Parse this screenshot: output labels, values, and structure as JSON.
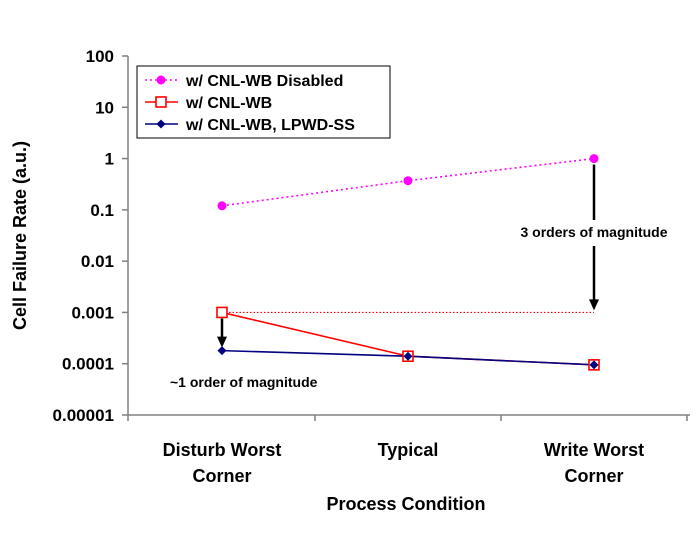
{
  "chart_data": {
    "type": "line",
    "x_scale": "category",
    "y_scale": "log",
    "ylim": [
      1e-05,
      100
    ],
    "xlabel": "Process Condition",
    "ylabel": "Cell Failure Rate (a.u.)",
    "y_ticks": [
      "0.00001",
      "0.0001",
      "0.001",
      "0.01",
      "0.1",
      "1",
      "10",
      "100"
    ],
    "categories": [
      [
        "Disturb Worst",
        "Corner"
      ],
      [
        "Typical"
      ],
      [
        "Write Worst",
        "Corner"
      ]
    ],
    "grid": false,
    "legend_position": "top-left",
    "series": [
      {
        "name": "w/ CNL-WB Disabled",
        "color": "#ff00ff",
        "line_style": "dotted",
        "marker": "filled-circle",
        "values": [
          0.12,
          0.37,
          1.0
        ]
      },
      {
        "name": "w/ CNL-WB",
        "color": "#ff0000",
        "line_style": "solid",
        "marker": "open-square",
        "values": [
          0.001,
          0.00014,
          9.5e-05
        ]
      },
      {
        "name": "w/ CNL-WB, LPWD-SS",
        "color": "#000080",
        "line_style": "solid",
        "marker": "filled-diamond",
        "values": [
          0.00018,
          0.00014,
          9.5e-05
        ]
      }
    ],
    "reference_line": {
      "y": 0.001,
      "color": "#ff0000",
      "line_style": "dotted"
    },
    "annotations": [
      {
        "text": "3 orders of magnitude",
        "category_index": 2,
        "from": 1.0,
        "to": 0.001
      },
      {
        "text": "~1 order of magnitude",
        "category_index": 0,
        "from": 0.001,
        "to": 0.00018
      }
    ]
  }
}
